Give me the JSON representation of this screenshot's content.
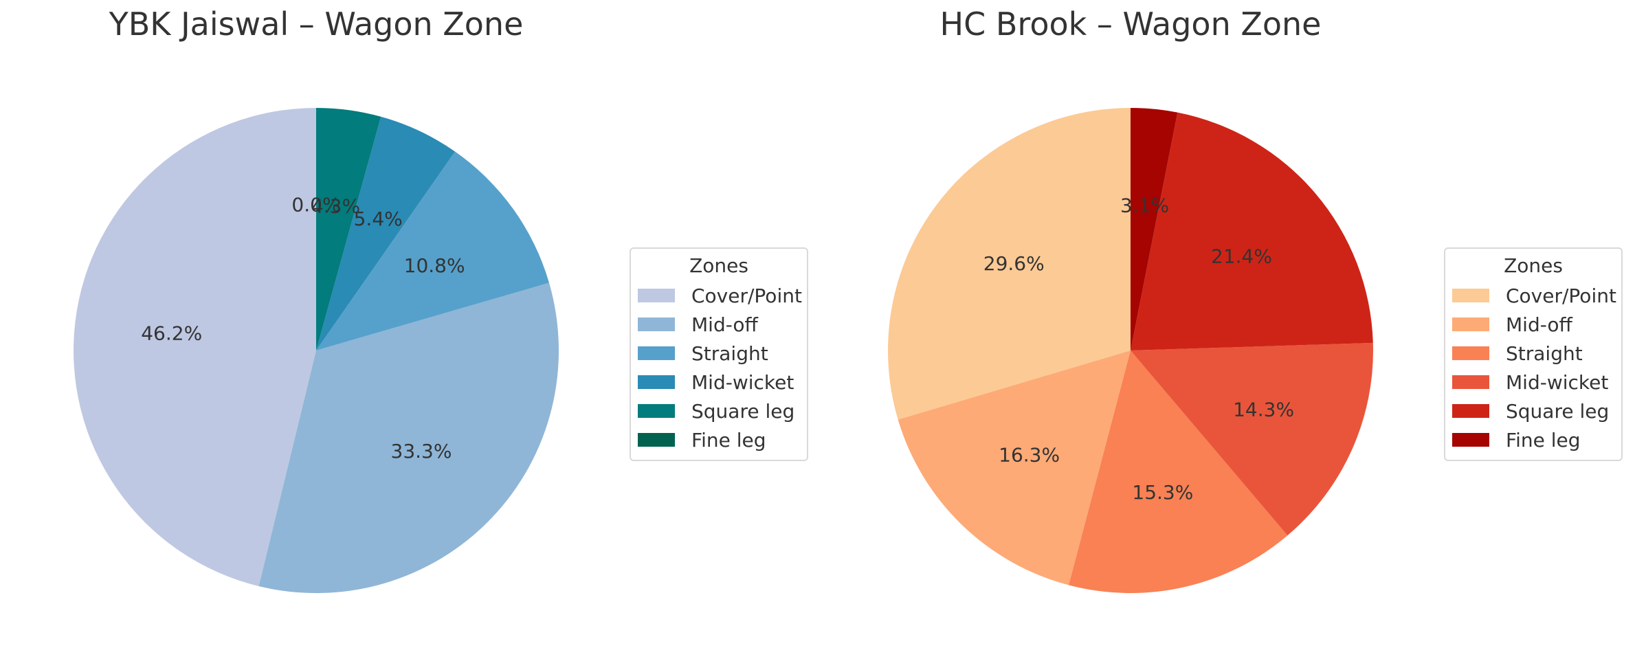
{
  "chart_data": [
    {
      "type": "pie",
      "title": "YBK Jaiswal – Wagon Zone",
      "legend_title": "Zones",
      "legend_placement": "right",
      "categories": [
        "Cover/Point",
        "Mid-off",
        "Straight",
        "Mid-wicket",
        "Square leg",
        "Fine leg"
      ],
      "values": [
        46.2,
        33.3,
        10.8,
        5.4,
        4.3,
        0.0
      ],
      "labels": [
        "46.2%",
        "33.3%",
        "10.8%",
        "5.4%",
        "4.3%",
        "0.0%"
      ],
      "colors": [
        "#bfc8e2",
        "#8fb6d7",
        "#56a1cb",
        "#2a8bb5",
        "#027c7c",
        "#01634f"
      ],
      "start_angle": 90,
      "direction": "counterclockwise"
    },
    {
      "type": "pie",
      "title": "HC Brook – Wagon Zone",
      "legend_title": "Zones",
      "legend_placement": "right",
      "categories": [
        "Cover/Point",
        "Mid-off",
        "Straight",
        "Mid-wicket",
        "Square leg",
        "Fine leg"
      ],
      "values": [
        29.6,
        16.3,
        15.3,
        14.3,
        21.4,
        3.1
      ],
      "labels": [
        "29.6%",
        "16.3%",
        "15.3%",
        "14.3%",
        "21.4%",
        "3.1%"
      ],
      "colors": [
        "#fcca95",
        "#fdaa76",
        "#f98154",
        "#e9553b",
        "#ce2417",
        "#a50401"
      ],
      "start_angle": 90,
      "direction": "counterclockwise"
    }
  ]
}
